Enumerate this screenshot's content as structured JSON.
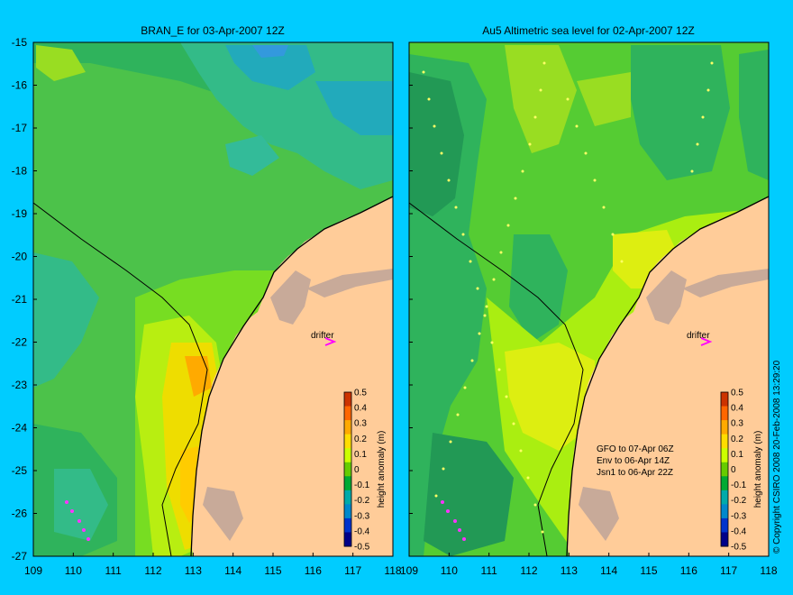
{
  "background_color": "#00ccff",
  "land_color": "#ffcc99",
  "left_panel": {
    "title": "BRAN_E for 03-Apr-2007 12Z",
    "drifter_label": "drifter"
  },
  "right_panel": {
    "title": "Au5 Altimetric sea level  for 02-Apr-2007 12Z",
    "drifter_label": "drifter",
    "satellite_notes": [
      "GFO to 07-Apr 06Z",
      "Env to 06-Apr 14Z",
      "Jsn1 to 06-Apr 22Z"
    ]
  },
  "y_ticks": [
    "-15",
    "-16",
    "-17",
    "-18",
    "-19",
    "-20",
    "-21",
    "-22",
    "-23",
    "-24",
    "-25",
    "-26",
    "-27"
  ],
  "x_ticks_left": [
    "109",
    "110",
    "111",
    "112",
    "113",
    "114",
    "115",
    "116",
    "117",
    "118"
  ],
  "x_ticks_right": [
    "109",
    "110",
    "111",
    "112",
    "113",
    "114",
    "115",
    "116",
    "117",
    "118"
  ],
  "colorbar": {
    "label": "height anomaly (m)",
    "ticks": [
      "0.5",
      "0.4",
      "0.3",
      "0.2",
      "0.1",
      "0",
      "-0.1",
      "-0.2",
      "-0.3",
      "-0.4",
      "-0.5"
    ],
    "colors": [
      "#cc3300",
      "#ff6600",
      "#ffaa00",
      "#ffdd00",
      "#ccff00",
      "#66cc00",
      "#00aa33",
      "#00aaaa",
      "#0088cc",
      "#0033cc",
      "#000088"
    ]
  },
  "copyright": "© Copyright CSIRO 2008    20-Feb-2008 13:29:20"
}
